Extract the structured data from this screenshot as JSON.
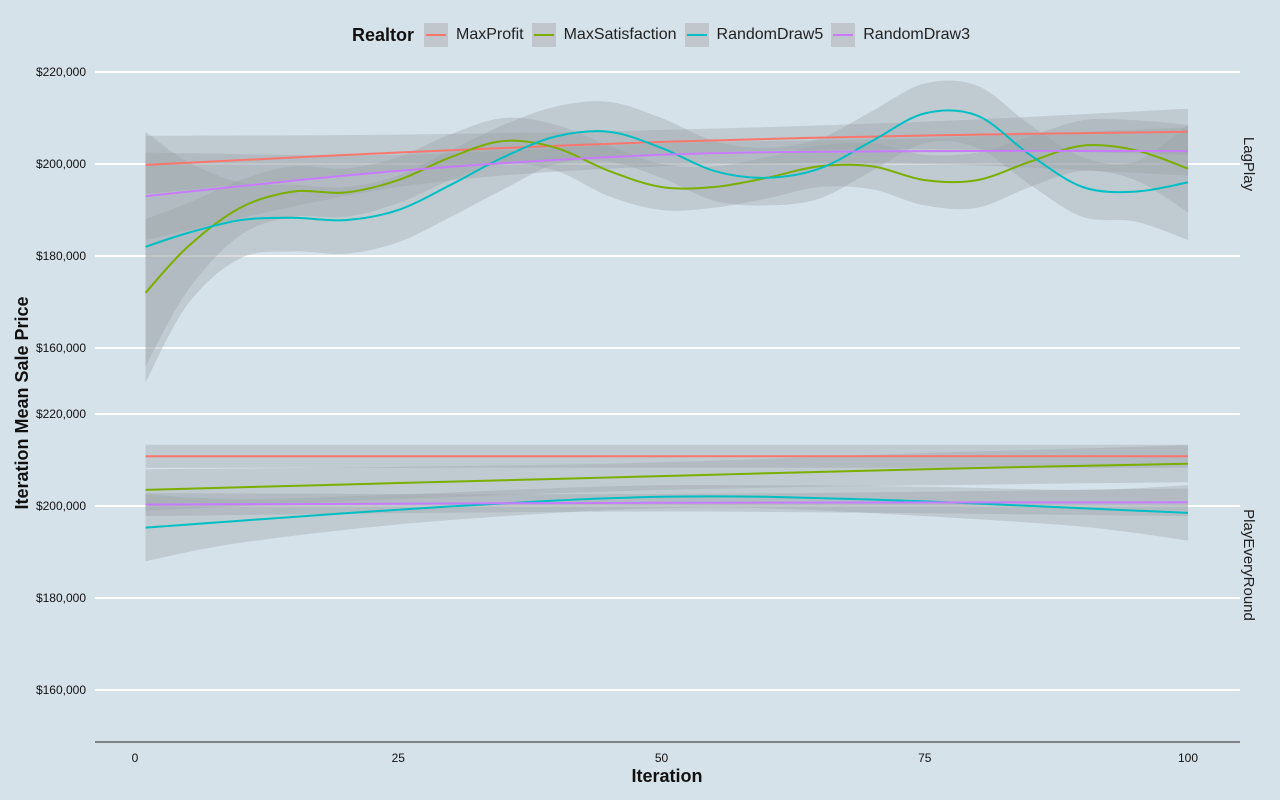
{
  "legend": {
    "title": "Realtor",
    "items": [
      {
        "label": "MaxProfit",
        "color": "#f8766d"
      },
      {
        "label": "MaxSatisfaction",
        "color": "#7cae00"
      },
      {
        "label": "RandomDraw5",
        "color": "#00bfc4"
      },
      {
        "label": "RandomDraw3",
        "color": "#c77cff"
      }
    ]
  },
  "colors": {
    "background": "#d5e2ea",
    "gridline": "#ffffff",
    "ribbon": "#bfc4c8"
  },
  "chart_data": {
    "type": "line",
    "xlabel": "Iteration",
    "ylabel": "Iteration Mean Sale Price",
    "xlim": [
      1,
      100
    ],
    "xticks": [
      0,
      25,
      50,
      75,
      100
    ],
    "xtick_labels": [
      "0",
      "25",
      "50",
      "75",
      "100"
    ],
    "ylim": [
      148000,
      222000
    ],
    "yticks": [
      160000,
      180000,
      200000,
      220000
    ],
    "ytick_labels": [
      "$160,000",
      "$180,000",
      "$200,000",
      "$220,000"
    ],
    "grid": true,
    "smoothed_with_confidence_ribbon": true,
    "legend_position": "top",
    "panels": [
      {
        "strip_label": "LagPlay",
        "series": [
          {
            "name": "MaxProfit",
            "x": [
              1,
              25,
              50,
              75,
              100
            ],
            "y": [
              199800,
              202500,
              204800,
              206200,
              207000
            ],
            "lower": [
              193500,
              198600,
              202200,
              203200,
              202000
            ],
            "upper": [
              206100,
              206400,
              207400,
              209200,
              212000
            ]
          },
          {
            "name": "MaxSatisfaction",
            "x": [
              1,
              5,
              10,
              15,
              20,
              25,
              30,
              35,
              40,
              45,
              50,
              55,
              60,
              65,
              70,
              75,
              80,
              85,
              90,
              95,
              100
            ],
            "y": [
              172000,
              182000,
              190500,
              194000,
              193800,
              196500,
              201500,
              205000,
              203500,
              198500,
              195000,
              195000,
              197000,
              199500,
              199500,
              196500,
              196500,
              200500,
              204000,
              203000,
              199000
            ],
            "lower": [
              156000,
              172500,
              184500,
              188500,
              188500,
              191500,
              196500,
              200000,
              198500,
              193000,
              190000,
              190500,
              192500,
              195000,
              194500,
              191000,
              190500,
              195000,
              198500,
              196500,
              189500
            ],
            "upper": [
              188000,
              191500,
              196500,
              199500,
              199000,
              201500,
              206500,
              210000,
              208500,
              204000,
              200000,
              199500,
              201500,
              204000,
              204500,
              202000,
              202500,
              206000,
              209500,
              209500,
              208500
            ]
          },
          {
            "name": "RandomDraw5",
            "x": [
              1,
              5,
              10,
              15,
              20,
              25,
              30,
              35,
              40,
              45,
              50,
              55,
              60,
              65,
              70,
              75,
              80,
              85,
              90,
              95,
              100
            ],
            "y": [
              182000,
              185000,
              187800,
              188300,
              187800,
              190000,
              195500,
              201500,
              206000,
              207000,
              203500,
              198500,
              197000,
              199000,
              205000,
              211000,
              210500,
              202000,
              195000,
              194000,
              196000
            ],
            "lower": [
              152500,
              169500,
              179500,
              181000,
              180500,
              183000,
              188500,
              194500,
              200000,
              200500,
              197000,
              192000,
              191000,
              192500,
              198500,
              204500,
              203500,
              195500,
              188500,
              187500,
              183500
            ],
            "upper": [
              207000,
              200500,
              196000,
              195500,
              195000,
              197500,
              203000,
              208500,
              212500,
              213500,
              210000,
              205000,
              203500,
              205500,
              211500,
              217500,
              217000,
              208500,
              201500,
              200500,
              208500
            ]
          },
          {
            "name": "RandomDraw3",
            "x": [
              1,
              25,
              50,
              75,
              100
            ],
            "y": [
              193000,
              198500,
              202000,
              202800,
              202800
            ],
            "lower": [
              183500,
              195000,
              199500,
              200000,
              197500
            ],
            "upper": [
              202500,
              202000,
              204500,
              205600,
              208000
            ]
          }
        ]
      },
      {
        "strip_label": "PlayEveryRound",
        "series": [
          {
            "name": "MaxProfit",
            "x": [
              1,
              50,
              100
            ],
            "y": [
              210800,
              210800,
              210800
            ],
            "lower": [
              208300,
              208300,
              208300
            ],
            "upper": [
              213300,
              213300,
              213300
            ]
          },
          {
            "name": "MaxSatisfaction",
            "x": [
              1,
              25,
              50,
              75,
              100
            ],
            "y": [
              203500,
              205000,
              206500,
              208000,
              209200
            ],
            "lower": [
              199000,
              201500,
              203500,
              204500,
              205200
            ],
            "upper": [
              208000,
              208500,
              209500,
              211500,
              213200
            ]
          },
          {
            "name": "RandomDraw5",
            "x": [
              1,
              10,
              25,
              40,
              50,
              60,
              75,
              90,
              100
            ],
            "y": [
              195300,
              196800,
              199200,
              201200,
              202000,
              202000,
              201000,
              199500,
              198500
            ],
            "lower": [
              188000,
              192000,
              196000,
              198500,
              199500,
              199500,
              197800,
              195500,
              192500
            ],
            "upper": [
              202500,
              201500,
              202500,
              203900,
              204500,
              204500,
              204200,
              203500,
              204500
            ]
          },
          {
            "name": "RandomDraw3",
            "x": [
              1,
              50,
              100
            ],
            "y": [
              200300,
              200700,
              200800
            ],
            "lower": [
              197800,
              198800,
              197800
            ],
            "upper": [
              202800,
              202600,
              203800
            ]
          }
        ]
      }
    ]
  }
}
